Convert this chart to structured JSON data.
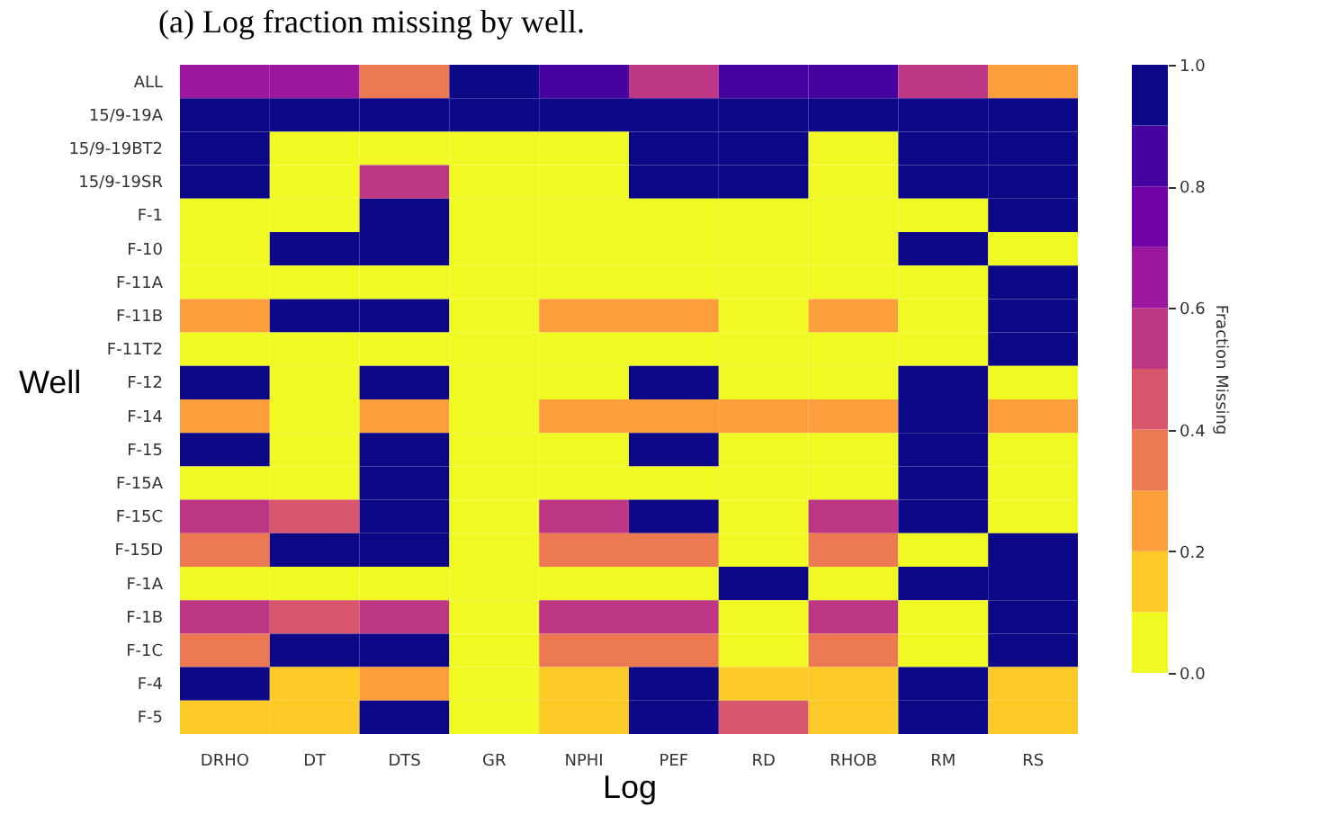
{
  "chart_data": {
    "type": "heatmap",
    "title": "(a) Log fraction missing by well.",
    "xlabel": "Log",
    "ylabel": "Well",
    "clabel": "Fraction Missing",
    "categories": [
      "DRHO",
      "DT",
      "DTS",
      "GR",
      "NPHI",
      "PEF",
      "RD",
      "RHOB",
      "RM",
      "RS"
    ],
    "y_categories": [
      "ALL",
      "15/9-19A",
      "15/9-19BT2",
      "15/9-19SR",
      "F-1",
      "F-10",
      "F-11A",
      "F-11B",
      "F-11T2",
      "F-12",
      "F-14",
      "F-15",
      "F-15A",
      "F-15C",
      "F-15D",
      "F-1A",
      "F-1B",
      "F-1C",
      "F-4",
      "F-5"
    ],
    "cells": [
      [
        0.65,
        0.65,
        0.35,
        1,
        0.85,
        0.55,
        0.85,
        0.85,
        0.55,
        0.25
      ],
      [
        1,
        1,
        1,
        1,
        1,
        1,
        1,
        1,
        1,
        1
      ],
      [
        1,
        0,
        0,
        0,
        0,
        1,
        1,
        0,
        1,
        1
      ],
      [
        1,
        0,
        0.55,
        0,
        0,
        1,
        1,
        0,
        1,
        1
      ],
      [
        0,
        0,
        1,
        0,
        0,
        0,
        0,
        0,
        0,
        1
      ],
      [
        0,
        1,
        1,
        0,
        0,
        0,
        0,
        0,
        1,
        0
      ],
      [
        0,
        0,
        0,
        0,
        0,
        0,
        0,
        0,
        0,
        1
      ],
      [
        0.25,
        1,
        1,
        0,
        0.25,
        0.25,
        0,
        0.25,
        0,
        1
      ],
      [
        0,
        0,
        0,
        0,
        0,
        0,
        0,
        0,
        0,
        1
      ],
      [
        1,
        0,
        1,
        0,
        0,
        1,
        0,
        0,
        1,
        0
      ],
      [
        0.25,
        0,
        0.25,
        0,
        0.25,
        0.25,
        0.25,
        0.25,
        1,
        0.25
      ],
      [
        1,
        0,
        1,
        0,
        0,
        1,
        0,
        0,
        1,
        0
      ],
      [
        0,
        0,
        1,
        0,
        0,
        0,
        0,
        0,
        1,
        0
      ],
      [
        0.55,
        0.45,
        1,
        0,
        0.55,
        1,
        0,
        0.55,
        1,
        0
      ],
      [
        0.35,
        1,
        1,
        0,
        0.35,
        0.35,
        0,
        0.35,
        0,
        1
      ],
      [
        0,
        0,
        0,
        0,
        0,
        0,
        1,
        0,
        1,
        1
      ],
      [
        0.55,
        0.45,
        0.55,
        0,
        0.55,
        0.55,
        0,
        0.55,
        0,
        1
      ],
      [
        0.35,
        1,
        1,
        0,
        0.35,
        0.35,
        0,
        0.35,
        0,
        1
      ],
      [
        1,
        0.15,
        0.25,
        0,
        0.15,
        1,
        0.15,
        0.15,
        1,
        0.15
      ],
      [
        0.15,
        0.15,
        1,
        0,
        0.15,
        1,
        0.45,
        0.15,
        1,
        0.15
      ]
    ],
    "clim": [
      0,
      1
    ],
    "cticks": [
      {
        "value": 0,
        "label": "0.0"
      },
      0.2,
      0.4,
      0.6,
      0.8,
      {
        "value": 1,
        "label": "1.0"
      }
    ]
  }
}
